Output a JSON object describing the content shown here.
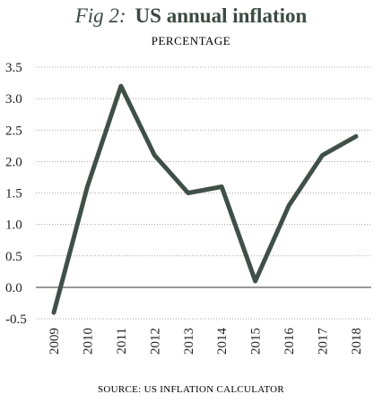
{
  "colors": {
    "title": "#3a4a42",
    "line": "#3f5048",
    "text": "#1f1f1f",
    "grid": "#8a8a8a",
    "zero_line": "#333333"
  },
  "chart_data": {
    "type": "line",
    "title_prefix": "Fig 2:",
    "title": "US annual inflation",
    "subtitle": "PERCENTAGE",
    "source": "SOURCE: US INFLATION CALCULATOR",
    "x": [
      "2009",
      "2010",
      "2011",
      "2012",
      "2013",
      "2014",
      "2015",
      "2016",
      "2017",
      "2018"
    ],
    "values": [
      -0.4,
      1.6,
      3.2,
      2.1,
      1.5,
      1.6,
      0.1,
      1.3,
      2.1,
      2.4
    ],
    "ylim": [
      -0.5,
      3.5
    ],
    "yticks": [
      "3.5",
      "3.0",
      "2.5",
      "2.0",
      "1.5",
      "1.0",
      "0.5",
      "0.0",
      "-0.5"
    ],
    "grid": true,
    "xlabel": "",
    "ylabel": ""
  }
}
